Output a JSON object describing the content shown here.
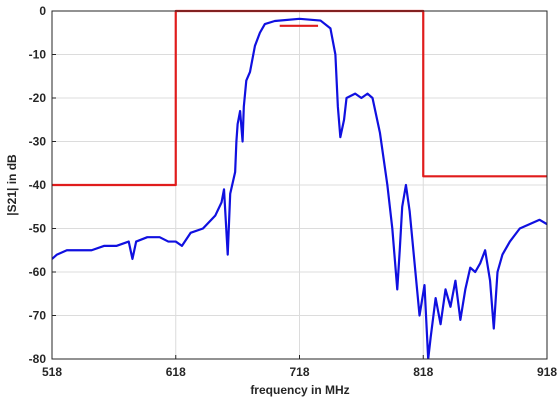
{
  "chart_data": {
    "type": "line",
    "xlabel": "frequency in MHz",
    "ylabel": "|S21| in dB",
    "xlim": [
      518,
      918
    ],
    "xticks": [
      518,
      618,
      718,
      818,
      918
    ],
    "ylim": [
      -80,
      0
    ],
    "yticks": [
      0,
      -10,
      -20,
      -30,
      -40,
      -50,
      -60,
      -70,
      -80
    ],
    "grid": true,
    "series": [
      {
        "color": "#1010e0",
        "x": [
          518,
          522,
          530,
          540,
          550,
          560,
          570,
          580,
          583,
          586,
          595,
          605,
          612,
          618,
          623,
          630,
          640,
          650,
          655,
          657,
          660,
          662,
          666,
          667,
          668,
          670,
          672,
          673,
          675,
          678,
          682,
          686,
          690,
          698,
          718,
          735,
          743,
          747,
          749,
          751,
          754,
          756,
          763,
          768,
          773,
          777,
          783,
          789,
          793,
          797,
          799,
          801,
          804,
          807,
          811,
          815,
          819,
          822,
          824,
          828,
          832,
          836,
          840,
          844,
          848,
          852,
          856,
          860,
          864,
          868,
          872,
          875,
          878,
          882,
          888,
          896,
          904,
          912,
          918
        ],
        "values": [
          -57,
          -56,
          -55,
          -55,
          -55,
          -54,
          -54,
          -53,
          -57,
          -53,
          -52,
          -52,
          -53,
          -53,
          -54,
          -51,
          -50,
          -47,
          -44,
          -41,
          -56,
          -42,
          -37,
          -30,
          -26,
          -23,
          -30,
          -22,
          -16,
          -14,
          -8,
          -5,
          -3,
          -2.3,
          -1.8,
          -2.2,
          -4,
          -10,
          -22,
          -29,
          -25,
          -20,
          -19,
          -20,
          -19,
          -20,
          -28,
          -40,
          -50,
          -64,
          -55,
          -45,
          -40,
          -46,
          -58,
          -70,
          -63,
          -80,
          -75,
          -66,
          -72,
          -64,
          -68,
          -62,
          -71,
          -64,
          -59,
          -60,
          -58,
          -55,
          -62,
          -73,
          -60,
          -56,
          -53,
          -50,
          -49,
          -48,
          -49
        ]
      },
      {
        "color": "#e01c1c",
        "x": [
          518,
          618,
          618,
          818,
          818,
          918
        ],
        "values": [
          -40,
          -40,
          0,
          0,
          -38,
          -38
        ]
      },
      {
        "color": "#e01c1c",
        "x": [
          702,
          733
        ],
        "values": [
          -3.4,
          -3.4
        ]
      }
    ]
  }
}
